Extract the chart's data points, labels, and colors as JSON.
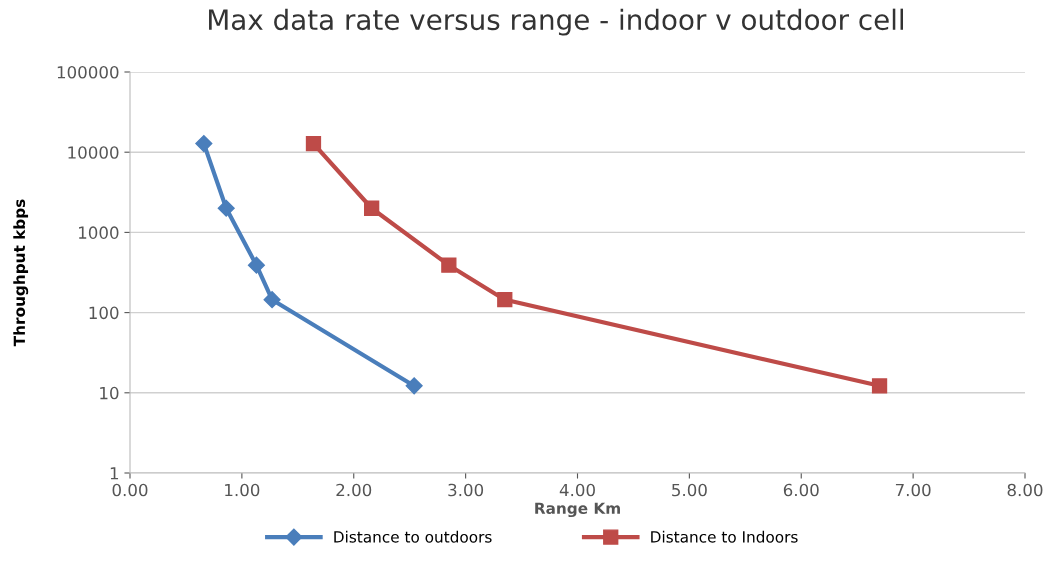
{
  "chart_data": {
    "type": "line",
    "title": "Max data rate versus range - indoor v outdoor cell",
    "xlabel": "Range Km",
    "ylabel": "Throughput kbps",
    "series": [
      {
        "name": "Distance to outdoors",
        "color": "#4a7ebb",
        "marker": "diamond",
        "x": [
          0.66,
          0.86,
          1.13,
          1.27,
          2.54
        ],
        "values": [
          12800,
          2000,
          390,
          145,
          12.2
        ]
      },
      {
        "name": "Distance to Indoors",
        "color": "#be4b48",
        "marker": "square",
        "x": [
          1.64,
          2.16,
          2.85,
          3.35,
          6.7
        ],
        "values": [
          12800,
          2000,
          390,
          145,
          12.2
        ]
      }
    ],
    "log": "y",
    "xlim": [
      0,
      8
    ],
    "ylim": [
      1,
      100000
    ],
    "xticks": [
      {
        "value": 0,
        "label": "0.00"
      },
      {
        "value": 1,
        "label": "1.00"
      },
      {
        "value": 2,
        "label": "2.00"
      },
      {
        "value": 3,
        "label": "3.00"
      },
      {
        "value": 4,
        "label": "4.00"
      },
      {
        "value": 5,
        "label": "5.00"
      },
      {
        "value": 6,
        "label": "6.00"
      },
      {
        "value": 7,
        "label": "7.00"
      },
      {
        "value": 8,
        "label": "8.00"
      }
    ],
    "yticks": [
      1,
      10,
      100,
      1000,
      10000,
      100000
    ],
    "grid": "y",
    "legend": "bottom",
    "line_style": "solid"
  }
}
